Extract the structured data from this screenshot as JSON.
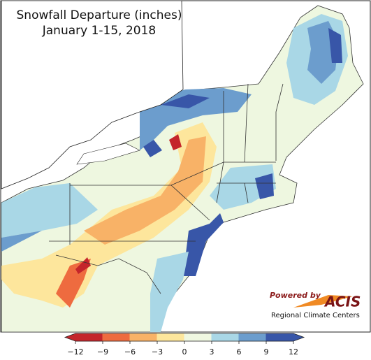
{
  "title": "Snowfall Departure (inches)",
  "subtitle": "January 1-15, 2018",
  "legend": {
    "ticks": [
      {
        "value": -12,
        "label": "−12"
      },
      {
        "value": -9,
        "label": "−9"
      },
      {
        "value": -6,
        "label": "−6"
      },
      {
        "value": -3,
        "label": "−3"
      },
      0,
      3,
      6,
      9,
      12
    ],
    "colors": [
      "#c4252b",
      "#ee6b3f",
      "#f8b267",
      "#fde69c",
      "#eff7e1",
      "#a9d7e6",
      "#6c9dcd",
      "#3856a8"
    ]
  },
  "logo": {
    "powered_by": "Powered by",
    "name": "ACIS",
    "subtitle": "Regional Climate Centers"
  }
}
